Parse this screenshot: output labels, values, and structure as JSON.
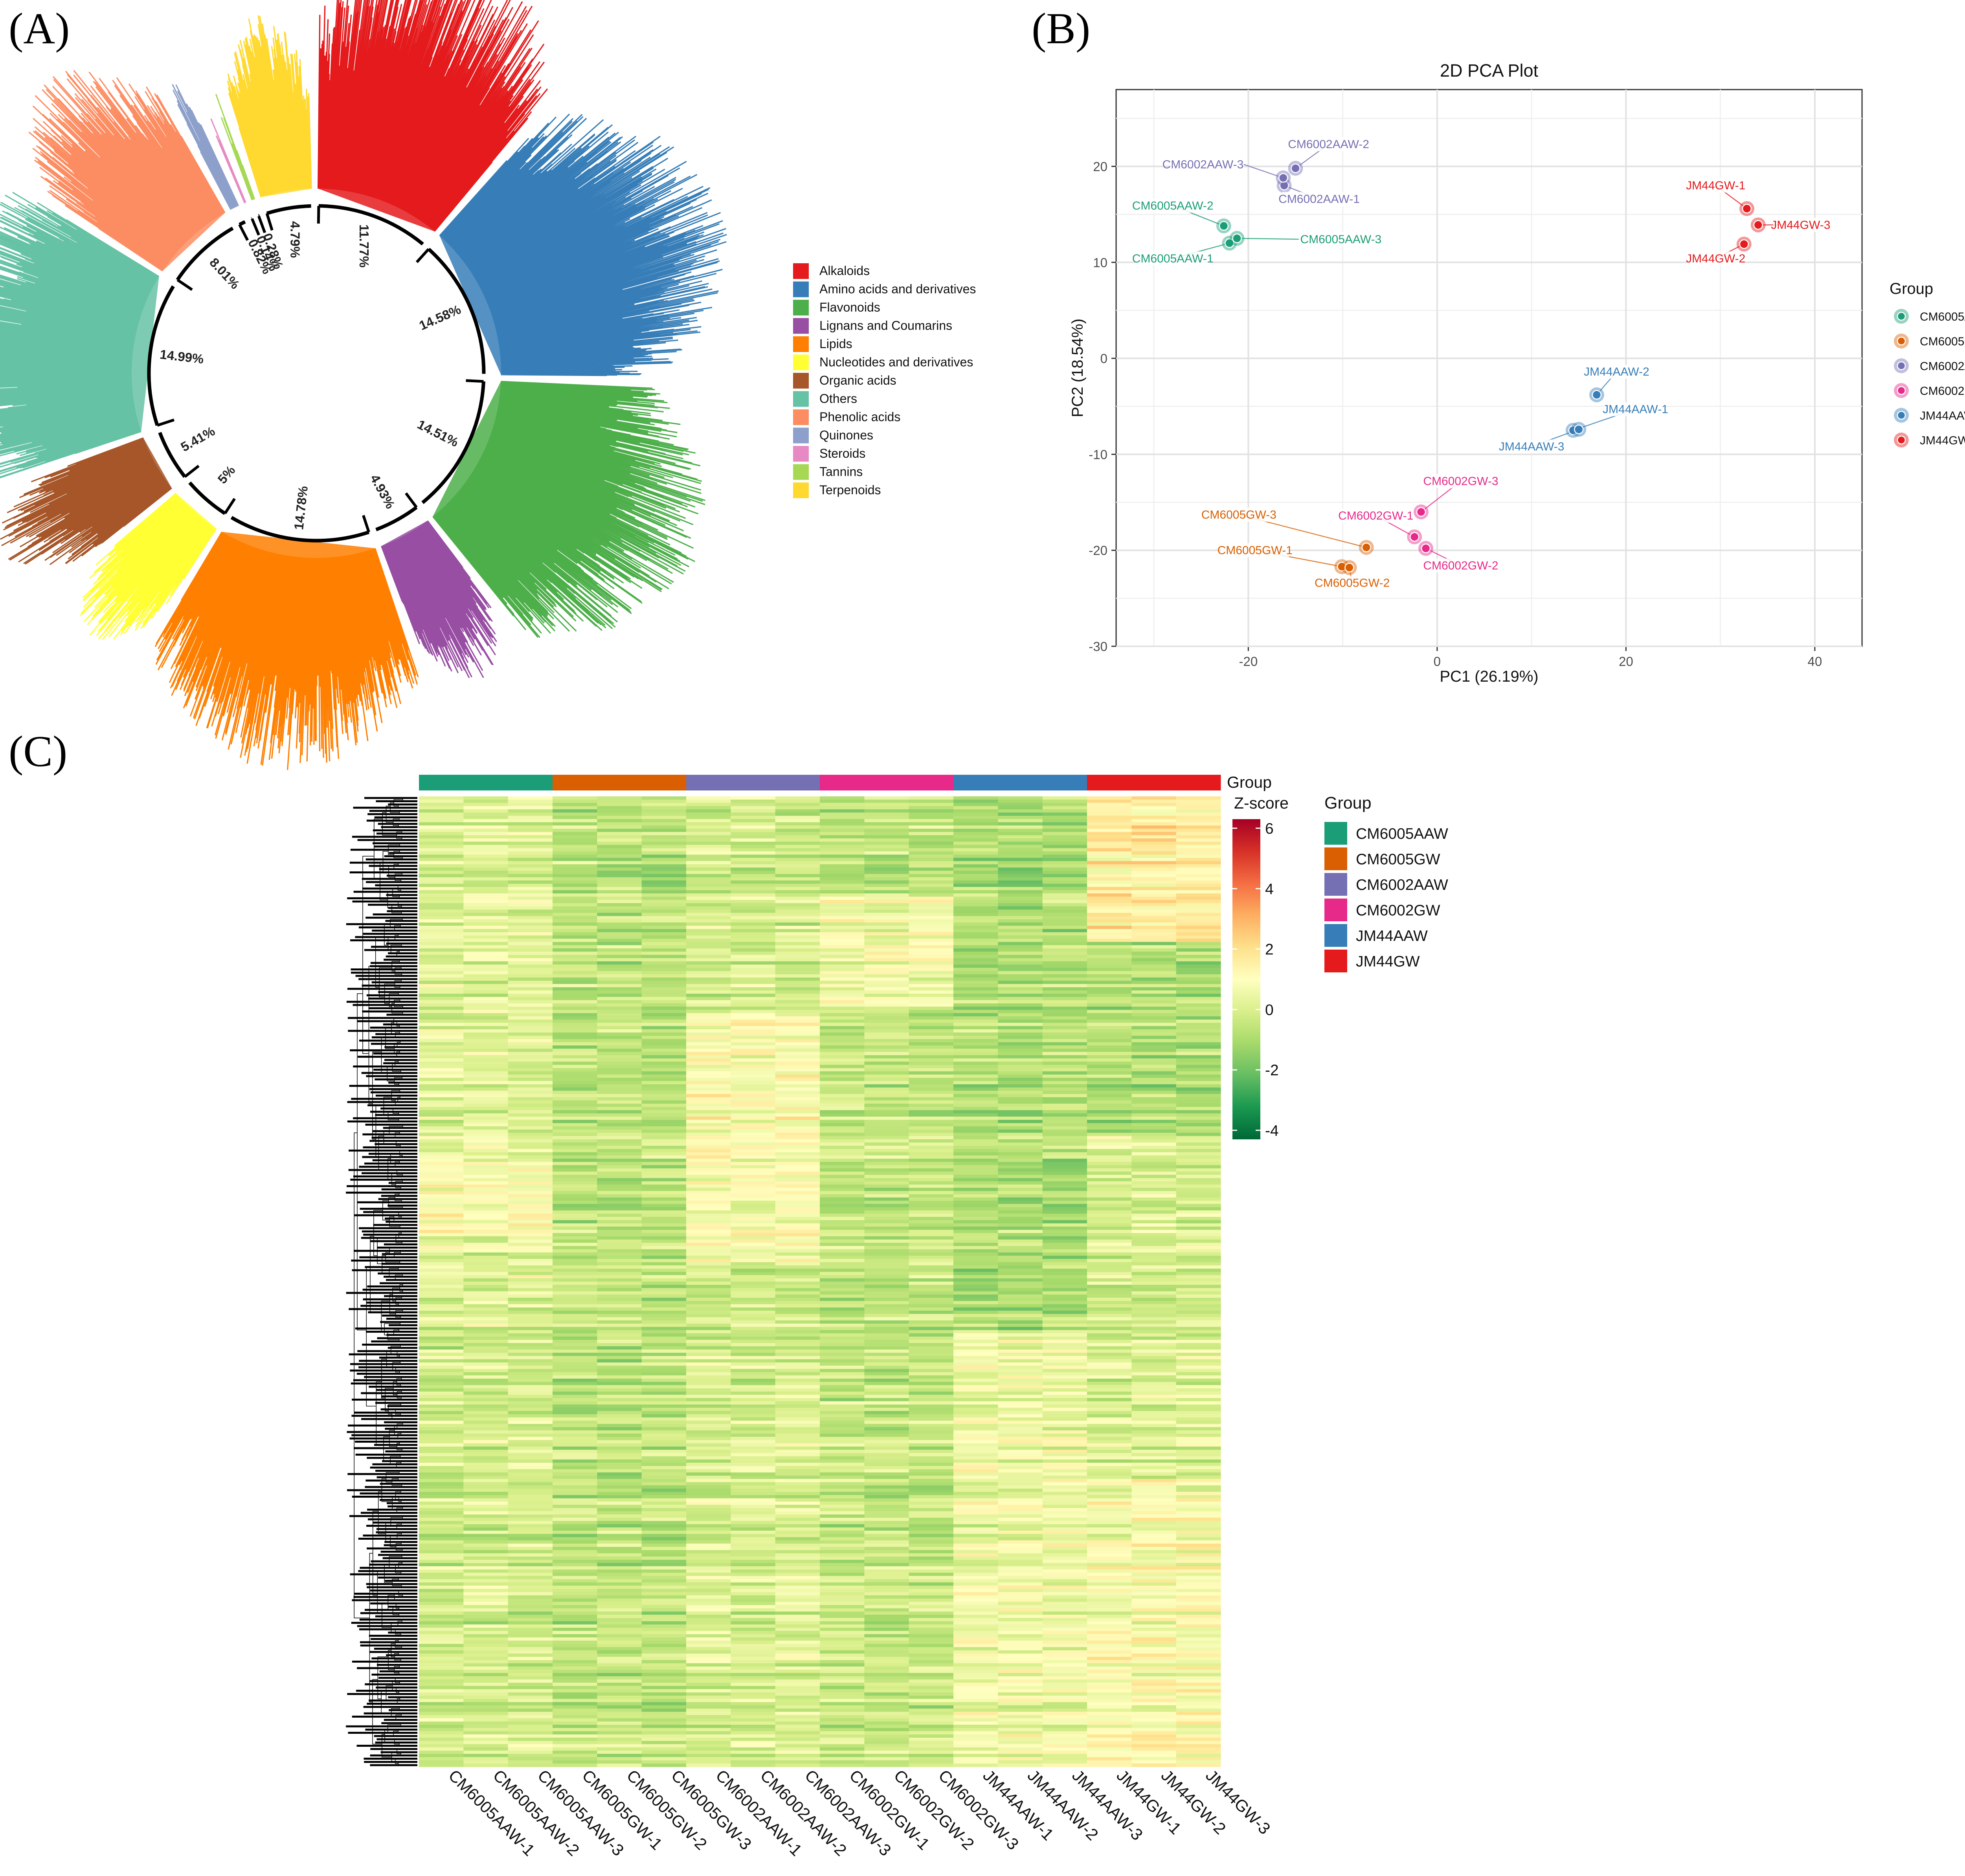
{
  "panels": {
    "a": "(A)",
    "b": "(B)",
    "c": "(C)"
  },
  "chart_data": [
    {
      "type": "radial_bar",
      "categories": [
        "Alkaloids",
        "Amino acids and derivatives",
        "Flavonoids",
        "Lignans and Coumarins",
        "Lipids",
        "Nucleotides and derivatives",
        "Organic acids",
        "Others",
        "Phenolic acids",
        "Quinones",
        "Steroids",
        "Tannins",
        "Terpenoids"
      ],
      "colors": [
        "#e41a1c",
        "#377eb8",
        "#4daf4a",
        "#984ea3",
        "#ff7f00",
        "#ffff33",
        "#a65628",
        "#66c2a5",
        "#fc8d62",
        "#8da0cb",
        "#e78ac3",
        "#a6d854",
        "#ffd92f"
      ],
      "segment_order": [
        "Alkaloids",
        "Amino acids and derivatives",
        "Flavonoids",
        "Lignans and Coumarins",
        "Lipids",
        "Nucleotides and derivatives",
        "Organic acids",
        "Others",
        "Phenolic acids",
        "Quinones",
        "Steroids",
        "Tannins",
        "Terpenoids"
      ],
      "segment_values": [
        11.77,
        14.58,
        14.51,
        4.93,
        14.78,
        5,
        5.41,
        14.99,
        8.01,
        0.82,
        0.14,
        0.28,
        4.79
      ],
      "labels": [
        "11.77%",
        "14.58%",
        "14.51%",
        "4.93%",
        "14.78%",
        "5%",
        "5.41%",
        "14.99%",
        "8.01%",
        "0.82%",
        "0.14%",
        "0.28%",
        "4.79%"
      ]
    },
    {
      "type": "scatter",
      "title": "2D PCA Plot",
      "xlabel": "PC1 (26.19%)",
      "ylabel": "PC2 (18.54%)",
      "xlim": [
        -34,
        45
      ],
      "ylim": [
        -30,
        28
      ],
      "xticks": [
        -20,
        0,
        20,
        40
      ],
      "yticks": [
        -30,
        -20,
        -10,
        0,
        10,
        20
      ],
      "xticklabels": [
        "-20",
        "0",
        "20",
        "40"
      ],
      "yticklabels": [
        "-30",
        "-20",
        "-10",
        "0",
        "10",
        "20"
      ],
      "grid": true,
      "legend_title": "Group",
      "legend_position": "right",
      "series": [
        {
          "name": "CM6005AAW",
          "color": "#1b9e77",
          "points": [
            {
              "label": "CM6005AAW-1",
              "x": -22.0,
              "y": 12.0,
              "lx": -28.0,
              "ly": 10.0,
              "anchor": "middle"
            },
            {
              "label": "CM6005AAW-2",
              "x": -22.6,
              "y": 13.8,
              "lx": -28.0,
              "ly": 15.5,
              "anchor": "middle"
            },
            {
              "label": "CM6005AAW-3",
              "x": -21.2,
              "y": 12.5,
              "lx": -14.5,
              "ly": 12.0,
              "anchor": "start"
            }
          ]
        },
        {
          "name": "CM6005GW",
          "color": "#d95f02",
          "points": [
            {
              "label": "CM6005GW-1",
              "x": -10.1,
              "y": -21.7,
              "lx": -19.3,
              "ly": -20.4,
              "anchor": "middle"
            },
            {
              "label": "CM6005GW-2",
              "x": -9.3,
              "y": -21.8,
              "lx": -9.0,
              "ly": -23.8,
              "anchor": "middle"
            },
            {
              "label": "CM6005GW-3",
              "x": -7.5,
              "y": -19.7,
              "lx": -21.0,
              "ly": -16.7,
              "anchor": "middle"
            }
          ]
        },
        {
          "name": "CM6002AAW",
          "color": "#7570b3",
          "points": [
            {
              "label": "CM6002AAW-1",
              "x": -16.2,
              "y": 18.0,
              "lx": -12.5,
              "ly": 16.2,
              "anchor": "middle"
            },
            {
              "label": "CM6002AAW-2",
              "x": -15.0,
              "y": 19.8,
              "lx": -11.5,
              "ly": 21.9,
              "anchor": "middle"
            },
            {
              "label": "CM6002AAW-3",
              "x": -16.3,
              "y": 18.8,
              "lx": -20.5,
              "ly": 19.8,
              "anchor": "end"
            }
          ]
        },
        {
          "name": "CM6002GW",
          "color": "#e7298a",
          "points": [
            {
              "label": "CM6002GW-1",
              "x": -2.4,
              "y": -18.6,
              "lx": -6.5,
              "ly": -16.8,
              "anchor": "middle"
            },
            {
              "label": "CM6002GW-2",
              "x": -1.2,
              "y": -19.8,
              "lx": 2.5,
              "ly": -22.0,
              "anchor": "middle"
            },
            {
              "label": "CM6002GW-3",
              "x": -1.7,
              "y": -16.0,
              "lx": 2.5,
              "ly": -13.2,
              "anchor": "middle"
            }
          ]
        },
        {
          "name": "JM44AAW",
          "color": "#377eb8",
          "points": [
            {
              "label": "JM44AAW-1",
              "x": 14.4,
              "y": -7.5,
              "lx": 21.0,
              "ly": -5.7,
              "anchor": "middle"
            },
            {
              "label": "JM44AAW-2",
              "x": 16.9,
              "y": -3.8,
              "lx": 19.0,
              "ly": -1.8,
              "anchor": "middle"
            },
            {
              "label": "JM44AAW-3",
              "x": 15.0,
              "y": -7.4,
              "lx": 10.0,
              "ly": -9.6,
              "anchor": "middle"
            }
          ]
        },
        {
          "name": "JM44GW",
          "color": "#e41a1c",
          "points": [
            {
              "label": "JM44GW-1",
              "x": 32.8,
              "y": 15.6,
              "lx": 29.5,
              "ly": 17.6,
              "anchor": "middle"
            },
            {
              "label": "JM44GW-2",
              "x": 32.5,
              "y": 11.9,
              "lx": 29.5,
              "ly": 10.0,
              "anchor": "middle"
            },
            {
              "label": "JM44GW-3",
              "x": 34.0,
              "y": 13.9,
              "lx": 38.5,
              "ly": 13.5,
              "anchor": "middle"
            }
          ]
        }
      ]
    },
    {
      "type": "heatmap",
      "title": "",
      "columns": [
        "CM6005AAW-1",
        "CM6005AAW-2",
        "CM6005AAW-3",
        "CM6005GW-1",
        "CM6005GW-2",
        "CM6005GW-3",
        "CM6002AAW-1",
        "CM6002AAW-2",
        "CM6002AAW-3",
        "CM6002GW-1",
        "CM6002GW-2",
        "CM6002GW-3",
        "JM44AAW-1",
        "JM44AAW-2",
        "JM44AAW-3",
        "JM44GW-1",
        "JM44GW-2",
        "JM44GW-3"
      ],
      "column_groups": [
        "CM6005AAW",
        "CM6005AAW",
        "CM6005AAW",
        "CM6005GW",
        "CM6005GW",
        "CM6005GW",
        "CM6002AAW",
        "CM6002AAW",
        "CM6002AAW",
        "CM6002GW",
        "CM6002GW",
        "CM6002GW",
        "JM44AAW",
        "JM44AAW",
        "JM44AAW",
        "JM44GW",
        "JM44GW",
        "JM44GW"
      ],
      "groups": [
        "CM6005AAW",
        "CM6005GW",
        "CM6002AAW",
        "CM6002GW",
        "JM44AAW",
        "JM44GW"
      ],
      "group_colors": [
        "#1b9e77",
        "#d95f02",
        "#7570b3",
        "#e7298a",
        "#377eb8",
        "#e41a1c"
      ],
      "annotation_label": "Group",
      "colorbar_title": "Z-score",
      "colorbar_range": [
        -4.3,
        6.3
      ],
      "colorbar_ticks": [
        -4,
        -2,
        0,
        2,
        4,
        6
      ],
      "colorbar_ticklabels": [
        "-4",
        "-2",
        "0",
        "2",
        "4",
        "6"
      ],
      "colorscale": [
        "#006837",
        "#1a9850",
        "#66bd63",
        "#a6d96a",
        "#d9ef8b",
        "#ffffbf",
        "#fee08b",
        "#fdae61",
        "#f46d43",
        "#d73027",
        "#a50026"
      ],
      "legend_title": "Group",
      "legend_position": "right"
    }
  ]
}
